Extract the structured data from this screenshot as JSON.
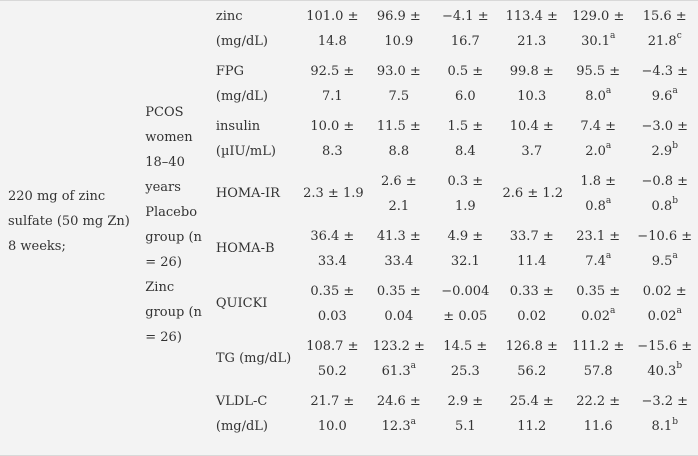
{
  "treatment": {
    "line1": "220 mg of zinc",
    "line2": "sulfate (50 mg Zn)",
    "line3": "8 weeks;"
  },
  "population": {
    "lines": [
      "PCOS",
      "women",
      "18–40",
      "years",
      "Placebo",
      "group (n",
      "= 26)",
      "Zinc",
      "group (n",
      "= 26)"
    ]
  },
  "rows": [
    {
      "param": [
        "zinc",
        "(mg/dL)"
      ],
      "cells": [
        {
          "a": "101.0 ±",
          "b": "14.8"
        },
        {
          "a": "96.9 ±",
          "b": "10.9"
        },
        {
          "a": "−4.1 ±",
          "b": "16.7"
        },
        {
          "a": "113.4 ±",
          "b": "21.3"
        },
        {
          "a": "129.0 ±",
          "b": "30.1",
          "sup": "a"
        },
        {
          "a": "15.6 ±",
          "b": "21.8",
          "sup": "c"
        }
      ]
    },
    {
      "param": [
        "FPG",
        "(mg/dL)"
      ],
      "cells": [
        {
          "a": "92.5 ±",
          "b": "7.1"
        },
        {
          "a": "93.0 ±",
          "b": "7.5"
        },
        {
          "a": "0.5 ±",
          "b": "6.0"
        },
        {
          "a": "99.8 ±",
          "b": "10.3"
        },
        {
          "a": "95.5 ±",
          "b": "8.0",
          "sup": "a"
        },
        {
          "a": "−4.3 ±",
          "b": "9.6",
          "sup": "a"
        }
      ]
    },
    {
      "param": [
        "insulin",
        "(µIU/mL)"
      ],
      "cells": [
        {
          "a": "10.0 ±",
          "b": "8.3"
        },
        {
          "a": "11.5 ±",
          "b": "8.8"
        },
        {
          "a": "1.5 ±",
          "b": "8.4"
        },
        {
          "a": "10.4 ±",
          "b": "3.7"
        },
        {
          "a": "7.4 ±",
          "b": "2.0",
          "sup": "a"
        },
        {
          "a": "−3.0 ±",
          "b": "2.9",
          "sup": "b"
        }
      ]
    },
    {
      "param": [
        "HOMA-IR"
      ],
      "cells": [
        {
          "single": "2.3 ± 1.9"
        },
        {
          "a": "2.6 ±",
          "b": "2.1"
        },
        {
          "a": "0.3 ±",
          "b": "1.9"
        },
        {
          "single": "2.6 ± 1.2"
        },
        {
          "a": "1.8 ±",
          "b": "0.8",
          "sup": "a"
        },
        {
          "a": "−0.8 ±",
          "b": "0.8",
          "sup": "b"
        }
      ]
    },
    {
      "param": [
        "HOMA-B"
      ],
      "cells": [
        {
          "a": "36.4 ±",
          "b": "33.4"
        },
        {
          "a": "41.3 ±",
          "b": "33.4"
        },
        {
          "a": "4.9 ±",
          "b": "32.1"
        },
        {
          "a": "33.7 ±",
          "b": "11.4"
        },
        {
          "a": "23.1 ±",
          "b": "7.4",
          "sup": "a"
        },
        {
          "a": "−10.6 ±",
          "b": "9.5",
          "sup": "a"
        }
      ]
    },
    {
      "param": [
        "QUICKI"
      ],
      "cells": [
        {
          "a": "0.35 ±",
          "b": "0.03"
        },
        {
          "a": "0.35 ±",
          "b": "0.04"
        },
        {
          "a": "−0.004",
          "b": "± 0.05"
        },
        {
          "a": "0.33 ±",
          "b": "0.02"
        },
        {
          "a": "0.35 ±",
          "b": "0.02",
          "sup": "a"
        },
        {
          "a": "0.02 ±",
          "b": "0.02",
          "sup": "a"
        }
      ]
    },
    {
      "param": [
        "TG (mg/dL)"
      ],
      "cells": [
        {
          "a": "108.7 ±",
          "b": "50.2"
        },
        {
          "a": "123.2 ±",
          "b": "61.3",
          "sup": "a"
        },
        {
          "a": "14.5 ±",
          "b": "25.3"
        },
        {
          "a": "126.8 ±",
          "b": "56.2"
        },
        {
          "a": "111.2 ±",
          "b": "57.8"
        },
        {
          "a": "−15.6 ±",
          "b": "40.3",
          "sup": "b"
        }
      ]
    },
    {
      "param": [
        "VLDL-C",
        "(mg/dL)"
      ],
      "cells": [
        {
          "a": "21.7 ±",
          "b": "10.0"
        },
        {
          "a": "24.6 ±",
          "b": "12.3",
          "sup": "a"
        },
        {
          "a": "2.9 ±",
          "b": "5.1"
        },
        {
          "a": "25.4 ±",
          "b": "11.2"
        },
        {
          "a": "22.2 ±",
          "b": "11.6"
        },
        {
          "a": "−3.2 ±",
          "b": "8.1",
          "sup": "b"
        }
      ]
    }
  ]
}
